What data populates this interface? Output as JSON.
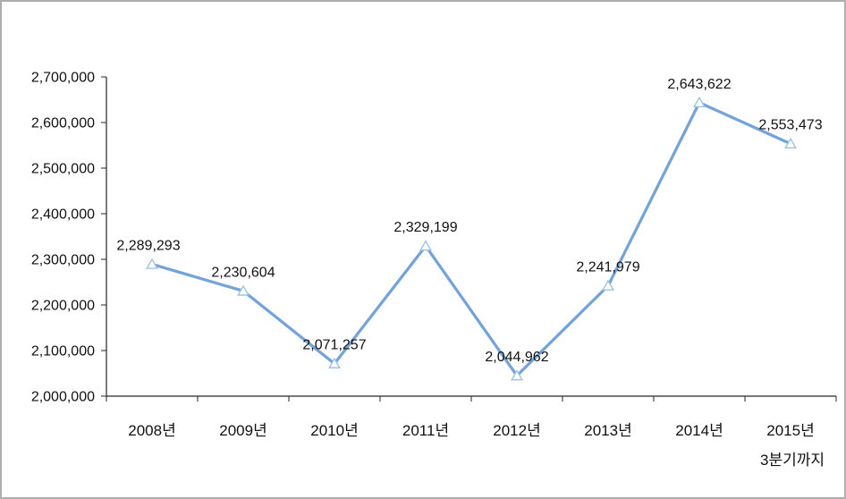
{
  "chart_data": {
    "type": "line",
    "title": "",
    "xlabel": "",
    "ylabel": "",
    "categories": [
      "2008년",
      "2009년",
      "2010년",
      "2011년",
      "2012년",
      "2013년",
      "2014년",
      "2015년"
    ],
    "x_sub_label": {
      "index": 7,
      "text": "3분기까지"
    },
    "values": [
      2289293,
      2230604,
      2071257,
      2329199,
      2044962,
      2241979,
      2643622,
      2553473
    ],
    "data_labels": [
      "2,289,293",
      "2,230,604",
      "2,071,257",
      "2,329,199",
      "2,044,962",
      "2,241,979",
      "2,643,622",
      "2,553,473"
    ],
    "ylim": [
      2000000,
      2700000
    ],
    "y_tick_step": 100000,
    "y_tick_labels": [
      "2,000,000",
      "2,100,000",
      "2,200,000",
      "2,300,000",
      "2,400,000",
      "2,500,000",
      "2,600,000",
      "2,700,000"
    ],
    "grid": false,
    "legend": "none",
    "marker": "triangle-open",
    "colors": {
      "line": "#74A3D9",
      "marker_stroke": "#9DC3E6",
      "marker_fill": "#FFFFFF",
      "axis": "#262626",
      "text": "#111111",
      "frame_border": "#AEAEAE",
      "background": "#FFFFFF"
    }
  }
}
